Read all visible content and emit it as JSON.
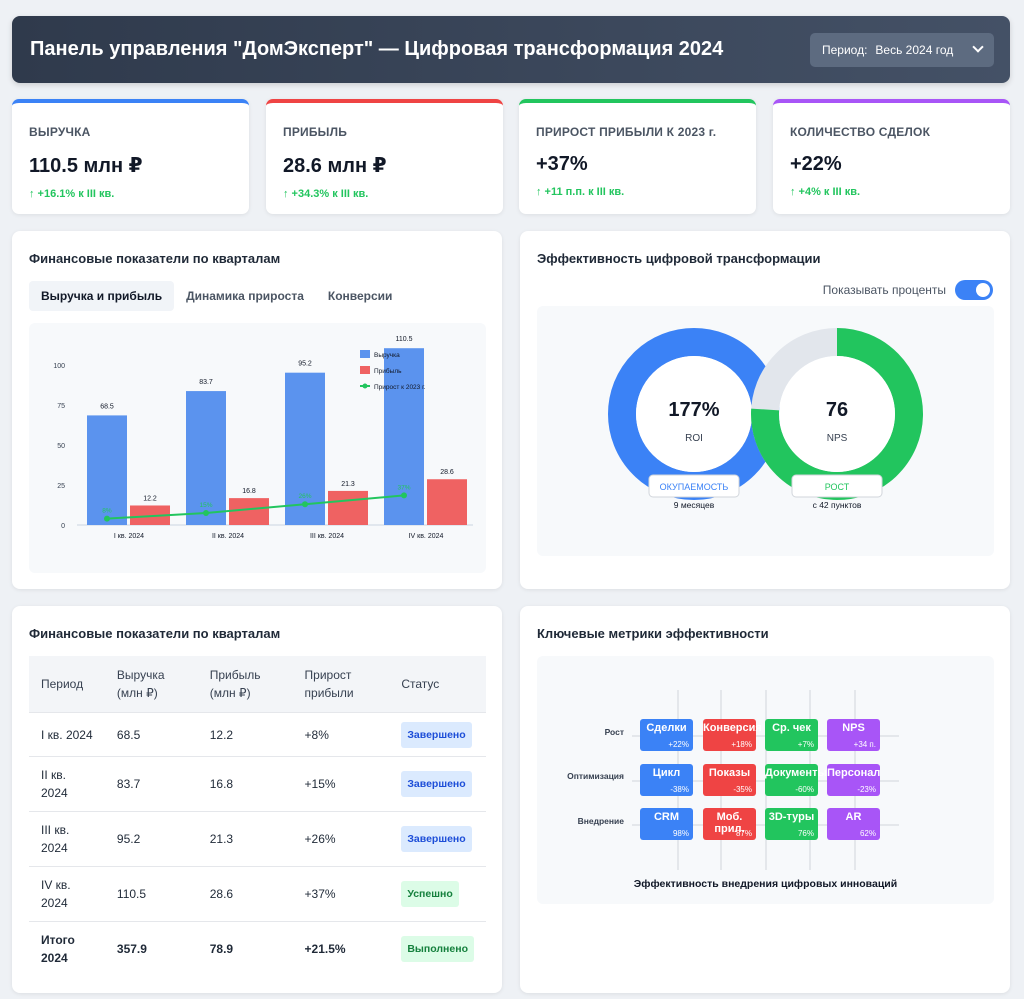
{
  "header": {
    "title": "Панель управления \"ДомЭксперт\" — Цифровая трансформация 2024",
    "period_label": "Период:",
    "period_value": "Весь 2024 год"
  },
  "kpis": [
    {
      "label": "ВЫРУЧКА",
      "value": "110.5 млн ₽",
      "delta": "↑ +16.1% к III кв.",
      "color": "#3b82f6"
    },
    {
      "label": "ПРИБЫЛЬ",
      "value": "28.6 млн ₽",
      "delta": "↑ +34.3% к III кв.",
      "color": "#ef4444"
    },
    {
      "label": "ПРИРОСТ ПРИБЫЛИ К 2023 г.",
      "value": "+37%",
      "delta": "↑ +11 п.п. к III кв.",
      "color": "#22c55e"
    },
    {
      "label": "КОЛИЧЕСТВО СДЕЛОК",
      "value": "+22%",
      "delta": "↑ +4% к III кв.",
      "color": "#a855f7"
    }
  ],
  "fin_chart_card": {
    "title": "Финансовые показатели по кварталам",
    "tabs": [
      "Выручка и прибыль",
      "Динамика прироста",
      "Конверсии"
    ]
  },
  "chart_data": {
    "type": "bar",
    "categories": [
      "I кв. 2024",
      "II кв. 2024",
      "III кв. 2024",
      "IV кв. 2024"
    ],
    "series": [
      {
        "name": "Выручка",
        "type": "bar",
        "values": [
          68.5,
          83.7,
          95.2,
          110.5
        ],
        "color": "#5b93ee"
      },
      {
        "name": "Прибыль",
        "type": "bar",
        "values": [
          12.2,
          16.8,
          21.3,
          28.6
        ],
        "color": "#ef6262"
      },
      {
        "name": "Прирост к 2023 г.",
        "type": "line",
        "values": [
          8,
          15,
          26,
          37
        ],
        "color": "#22c55e"
      }
    ],
    "line_labels": [
      "8%",
      "15%",
      "26%",
      "37%"
    ],
    "yticks": [
      0,
      25,
      50,
      75,
      100
    ],
    "ylim": [
      0,
      100
    ],
    "legend": "top-right"
  },
  "efficiency": {
    "title": "Эффективность цифровой трансформации",
    "toggle_label": "Показывать проценты",
    "roi": {
      "value": "177%",
      "label": "ROI",
      "badge": "ОКУПАЕМОСТЬ",
      "note": "9 месяцев",
      "fraction": 1.0,
      "color": "#3b82f6"
    },
    "nps": {
      "value": "76",
      "label": "NPS",
      "badge": "РОСТ",
      "note": "с 42 пунктов",
      "fraction": 0.76,
      "color": "#22c55e"
    }
  },
  "table": {
    "title": "Финансовые показатели по кварталам",
    "headers": [
      "Период",
      "Выручка (млн ₽)",
      "Прибыль (млн ₽)",
      "Прирост прибыли",
      "Статус"
    ],
    "rows": [
      [
        "I кв. 2024",
        "68.5",
        "12.2",
        "+8%",
        "Завершено"
      ],
      [
        "II кв. 2024",
        "83.7",
        "16.8",
        "+15%",
        "Завершено"
      ],
      [
        "III кв. 2024",
        "95.2",
        "21.3",
        "+26%",
        "Завершено"
      ],
      [
        "IV кв. 2024",
        "110.5",
        "28.6",
        "+37%",
        "Успешно"
      ]
    ],
    "total": [
      "Итого 2024",
      "357.9",
      "78.9",
      "+21.5%",
      "Выполнено"
    ]
  },
  "metrics": {
    "title": "Ключевые метрики эффективности",
    "caption": "Эффективность внедрения цифровых инноваций",
    "rows": [
      {
        "name": "Рост",
        "cells": [
          {
            "label": "Сделки",
            "value": "+22%",
            "color": "#3b82f6"
          },
          {
            "label": "Конверсия",
            "value": "+18%",
            "color": "#ef4444"
          },
          {
            "label": "Ср. чек",
            "value": "+7%",
            "color": "#22c55e"
          },
          {
            "label": "NPS",
            "value": "+34 п.",
            "color": "#a855f7"
          }
        ]
      },
      {
        "name": "Оптимизация",
        "cells": [
          {
            "label": "Цикл",
            "value": "-38%",
            "color": "#3b82f6"
          },
          {
            "label": "Показы",
            "value": "-35%",
            "color": "#ef4444"
          },
          {
            "label": "Документы",
            "value": "-60%",
            "color": "#22c55e"
          },
          {
            "label": "Персонал",
            "value": "-23%",
            "color": "#a855f7"
          }
        ]
      },
      {
        "name": "Внедрение",
        "cells": [
          {
            "label": "CRM",
            "value": "98%",
            "color": "#3b82f6"
          },
          {
            "label": "Моб. прил.",
            "value": "87%",
            "color": "#ef4444"
          },
          {
            "label": "3D-туры",
            "value": "76%",
            "color": "#22c55e"
          },
          {
            "label": "AR",
            "value": "62%",
            "color": "#a855f7"
          }
        ]
      }
    ]
  }
}
